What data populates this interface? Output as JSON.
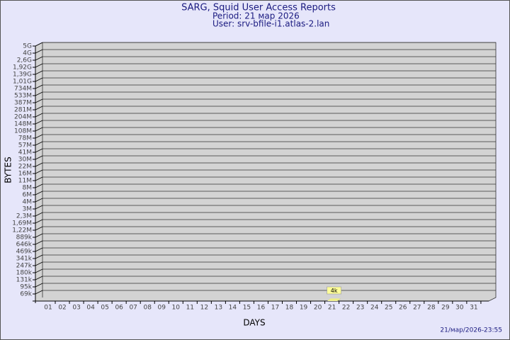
{
  "chart_data": {
    "type": "bar",
    "title": "SARG, Squid User Access Reports",
    "subtitle": "Period: 21 мар 2026",
    "user": "User: srv-bfile-i1.atlas-2.lan",
    "ylabel": "BYTES",
    "xlabel": "DAYS",
    "footer": "21/мар/2026-23:55",
    "categories": [
      "01",
      "02",
      "03",
      "04",
      "05",
      "06",
      "07",
      "08",
      "09",
      "10",
      "11",
      "12",
      "13",
      "14",
      "15",
      "16",
      "17",
      "18",
      "19",
      "20",
      "21",
      "22",
      "23",
      "24",
      "25",
      "26",
      "27",
      "28",
      "29",
      "30",
      "31"
    ],
    "values": [
      null,
      null,
      null,
      null,
      null,
      null,
      null,
      null,
      null,
      null,
      null,
      null,
      null,
      null,
      null,
      null,
      null,
      null,
      null,
      null,
      4000,
      null,
      null,
      null,
      null,
      null,
      null,
      null,
      null,
      null,
      null
    ],
    "value_labels": [
      null,
      null,
      null,
      null,
      null,
      null,
      null,
      null,
      null,
      null,
      null,
      null,
      null,
      null,
      null,
      null,
      null,
      null,
      null,
      null,
      "4k",
      null,
      null,
      null,
      null,
      null,
      null,
      null,
      null,
      null,
      null
    ],
    "color": "#ffff99",
    "ylim": [
      0,
      5000000000
    ],
    "yticks": [
      {
        "value": 69000,
        "label": "69k"
      },
      {
        "value": 95000,
        "label": "95k"
      },
      {
        "value": 131000,
        "label": "131k"
      },
      {
        "value": 180000,
        "label": "180k"
      },
      {
        "value": 247000,
        "label": "247k"
      },
      {
        "value": 341000,
        "label": "341k"
      },
      {
        "value": 469000,
        "label": "469k"
      },
      {
        "value": 646000,
        "label": "646k"
      },
      {
        "value": 889000,
        "label": "889k"
      },
      {
        "value": 1220000,
        "label": "1,22M"
      },
      {
        "value": 1690000,
        "label": "1,69M"
      },
      {
        "value": 2300000,
        "label": "2,3M"
      },
      {
        "value": 3000000,
        "label": "3M"
      },
      {
        "value": 4000000,
        "label": "4M"
      },
      {
        "value": 6000000,
        "label": "6M"
      },
      {
        "value": 8000000,
        "label": "8M"
      },
      {
        "value": 11000000,
        "label": "11M"
      },
      {
        "value": 16000000,
        "label": "16M"
      },
      {
        "value": 22000000,
        "label": "22M"
      },
      {
        "value": 30000000,
        "label": "30M"
      },
      {
        "value": 41000000,
        "label": "41M"
      },
      {
        "value": 57000000,
        "label": "57M"
      },
      {
        "value": 78000000,
        "label": "78M"
      },
      {
        "value": 108000000,
        "label": "108M"
      },
      {
        "value": 148000000,
        "label": "148M"
      },
      {
        "value": 204000000,
        "label": "204M"
      },
      {
        "value": 281000000,
        "label": "281M"
      },
      {
        "value": 387000000,
        "label": "387M"
      },
      {
        "value": 533000000,
        "label": "533M"
      },
      {
        "value": 734000000,
        "label": "734M"
      },
      {
        "value": 1010000000,
        "label": "1,01G"
      },
      {
        "value": 1390000000,
        "label": "1,39G"
      },
      {
        "value": 1920000000,
        "label": "1,92G"
      },
      {
        "value": 2600000000,
        "label": "2,6G"
      },
      {
        "value": 4000000000,
        "label": "4G"
      },
      {
        "value": 5000000000,
        "label": "5G"
      }
    ],
    "grid": true
  }
}
